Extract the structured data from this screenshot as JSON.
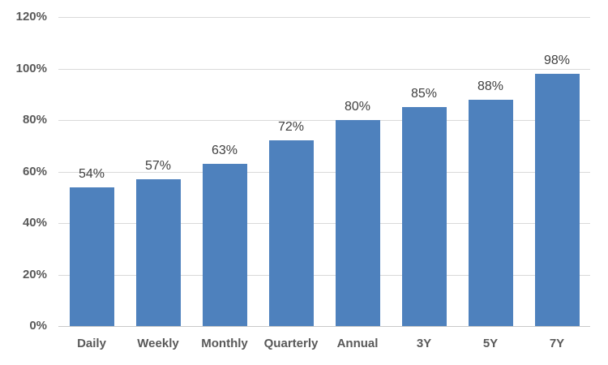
{
  "chart_data": {
    "type": "bar",
    "title": "",
    "xlabel": "",
    "ylabel": "",
    "categories": [
      "Daily",
      "Weekly",
      "Monthly",
      "Quarterly",
      "Annual",
      "3Y",
      "5Y",
      "7Y"
    ],
    "values": [
      54,
      57,
      63,
      72,
      80,
      85,
      88,
      98
    ],
    "data_labels": [
      "54%",
      "57%",
      "63%",
      "72%",
      "80%",
      "85%",
      "88%",
      "98%"
    ],
    "ylim": [
      0,
      120
    ],
    "ytick_step": 20,
    "ytick_labels": [
      "0%",
      "20%",
      "40%",
      "60%",
      "80%",
      "100%",
      "120%"
    ],
    "grid": true,
    "legend": "none",
    "colors": {
      "bar_fill": "#4e81bd",
      "gridline": "#d9d9d9",
      "axis_line": "#c9c9c9",
      "axis_label": "#595959",
      "data_label": "#3f3f3f",
      "background": "#ffffff"
    }
  }
}
